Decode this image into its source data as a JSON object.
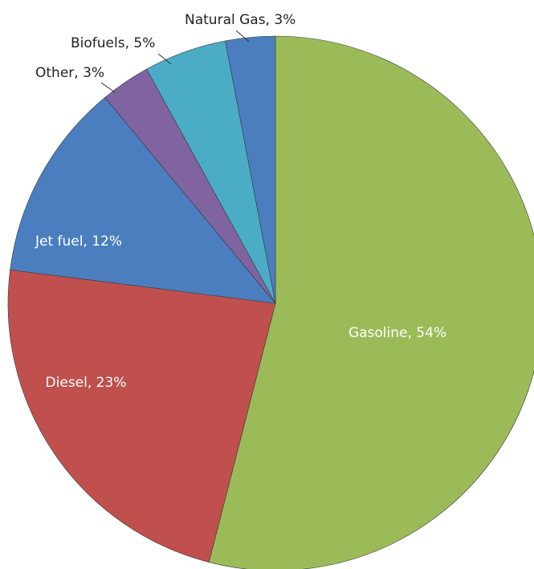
{
  "chart_data": {
    "type": "pie",
    "slices": [
      {
        "label": "Gasoline, 54%",
        "name": "Gasoline",
        "value": 54,
        "color": "#9bbb59"
      },
      {
        "label": "Diesel, 23%",
        "name": "Diesel",
        "value": 23,
        "color": "#c0504d"
      },
      {
        "label": "Jet fuel, 12%",
        "name": "Jet fuel",
        "value": 12,
        "color": "#4a7ebf"
      },
      {
        "label": "Other, 3%",
        "name": "Other",
        "value": 3,
        "color": "#8064a2"
      },
      {
        "label": "Biofuels, 5%",
        "name": "Biofuels",
        "value": 5,
        "color": "#4bacc6"
      },
      {
        "label": "Natural Gas, 3%",
        "name": "Natural Gas",
        "value": 3,
        "color": "#4a7ebf"
      }
    ],
    "start": "top",
    "direction": "clockwise"
  }
}
